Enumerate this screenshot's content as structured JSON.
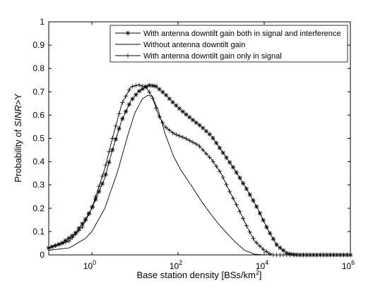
{
  "chart_data": {
    "type": "line",
    "xscale": "log",
    "xlim": [
      0.1,
      1000000
    ],
    "ylim": [
      0,
      1
    ],
    "xlabel_prefix": "Base station density [BSs/km",
    "xlabel_sup": "2",
    "xlabel_suffix": "]",
    "ylabel_prefix": "Probability of ",
    "ylabel_italic": "SINR",
    "ylabel_suffix": ">Υ",
    "x_ticks": [
      {
        "base": "10",
        "exp": "0"
      },
      {
        "base": "10",
        "exp": "2"
      },
      {
        "base": "10",
        "exp": "4"
      },
      {
        "base": "10",
        "exp": "6"
      }
    ],
    "y_ticks": [
      "0",
      "0.1",
      "0.2",
      "0.3",
      "0.4",
      "0.5",
      "0.6",
      "0.7",
      "0.8",
      "0.9",
      "1"
    ],
    "legend_position": "top-right",
    "grid": false,
    "series": [
      {
        "name": "With antenna downtilt gain both in signal and interference",
        "marker": "star",
        "color": "#000000",
        "points": [
          [
            0.1,
            0.03
          ],
          [
            0.2,
            0.05
          ],
          [
            0.4,
            0.09
          ],
          [
            0.7,
            0.15
          ],
          [
            1,
            0.2
          ],
          [
            2,
            0.33
          ],
          [
            3,
            0.45
          ],
          [
            5,
            0.58
          ],
          [
            8,
            0.66
          ],
          [
            12,
            0.7
          ],
          [
            20,
            0.728
          ],
          [
            30,
            0.725
          ],
          [
            50,
            0.69
          ],
          [
            80,
            0.65
          ],
          [
            120,
            0.62
          ],
          [
            200,
            0.585
          ],
          [
            350,
            0.55
          ],
          [
            600,
            0.51
          ],
          [
            1000,
            0.45
          ],
          [
            2000,
            0.37
          ],
          [
            4000,
            0.28
          ],
          [
            7000,
            0.2
          ],
          [
            12000,
            0.11
          ],
          [
            20000,
            0.04
          ],
          [
            35000,
            0.005
          ],
          [
            60000,
            0
          ],
          [
            1000000,
            0
          ]
        ]
      },
      {
        "name": "Without antenna downtilt gain",
        "marker": "none",
        "color": "#000000",
        "points": [
          [
            0.1,
            0.02
          ],
          [
            0.3,
            0.03
          ],
          [
            0.7,
            0.07
          ],
          [
            1,
            0.1
          ],
          [
            2,
            0.2
          ],
          [
            4,
            0.36
          ],
          [
            7,
            0.52
          ],
          [
            10,
            0.61
          ],
          [
            15,
            0.67
          ],
          [
            20,
            0.685
          ],
          [
            25,
            0.68
          ],
          [
            35,
            0.62
          ],
          [
            50,
            0.52
          ],
          [
            80,
            0.42
          ],
          [
            120,
            0.36
          ],
          [
            200,
            0.3
          ],
          [
            350,
            0.23
          ],
          [
            600,
            0.17
          ],
          [
            1000,
            0.12
          ],
          [
            2000,
            0.06
          ],
          [
            3500,
            0.02
          ],
          [
            6000,
            0.003
          ],
          [
            10000,
            0
          ],
          [
            1000000,
            0
          ]
        ]
      },
      {
        "name": "With antenna downtilt gain only in signal",
        "marker": "plus",
        "color": "#000000",
        "points": [
          [
            0.1,
            0.03
          ],
          [
            0.3,
            0.06
          ],
          [
            0.6,
            0.12
          ],
          [
            1,
            0.2
          ],
          [
            2,
            0.37
          ],
          [
            3,
            0.5
          ],
          [
            5,
            0.65
          ],
          [
            8,
            0.72
          ],
          [
            12,
            0.73
          ],
          [
            18,
            0.72
          ],
          [
            25,
            0.68
          ],
          [
            35,
            0.6
          ],
          [
            50,
            0.55
          ],
          [
            80,
            0.52
          ],
          [
            150,
            0.5
          ],
          [
            300,
            0.47
          ],
          [
            600,
            0.41
          ],
          [
            1000,
            0.35
          ],
          [
            1500,
            0.28
          ],
          [
            2500,
            0.2
          ],
          [
            4000,
            0.12
          ],
          [
            6000,
            0.06
          ],
          [
            10000,
            0.02
          ],
          [
            15000,
            0
          ],
          [
            1000000,
            0
          ]
        ]
      }
    ]
  }
}
